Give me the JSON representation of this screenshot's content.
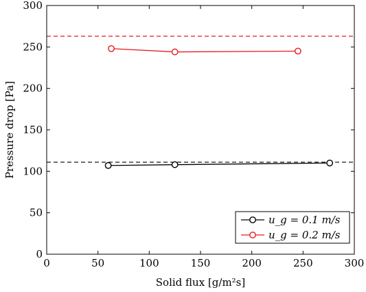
{
  "chart_data": {
    "type": "line",
    "xlabel": "Solid flux [g/m²s]",
    "ylabel": "Pressure drop [Pa]",
    "xlim": [
      0,
      300
    ],
    "ylim": [
      0,
      300
    ],
    "xticks": [
      0,
      50,
      100,
      150,
      200,
      250,
      300
    ],
    "yticks": [
      0,
      50,
      100,
      150,
      200,
      250,
      300
    ],
    "grid": false,
    "legend_position": "bottom-right",
    "series": [
      {
        "name": "u_g = 0.1 m/s",
        "color": "#000000",
        "x": [
          60,
          125,
          276
        ],
        "y": [
          107,
          108,
          110
        ],
        "reference_line": 111
      },
      {
        "name": "u_g = 0.2 m/s",
        "color": "#e8191f",
        "x": [
          63,
          125,
          245
        ],
        "y": [
          248,
          244,
          245
        ],
        "reference_line": 263
      }
    ]
  }
}
